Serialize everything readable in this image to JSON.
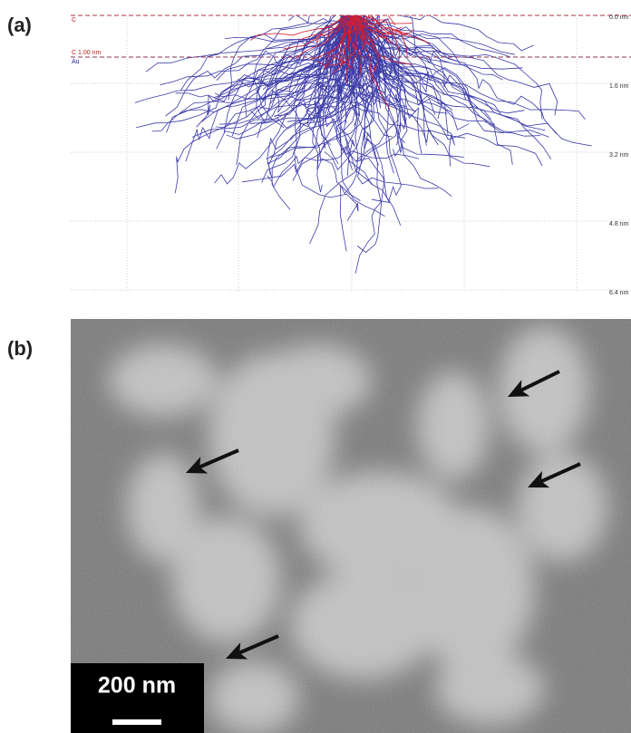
{
  "panel_a": {
    "label": "(a)",
    "layers": [
      "C",
      "C 1.00 nm",
      "Au"
    ],
    "depth_labels": [
      "0.0 nm",
      "1.6 nm",
      "3.2 nm",
      "4.8 nm",
      "6.4 nm"
    ]
  },
  "panel_b": {
    "label": "(b)",
    "scale_bar": "200 nm"
  }
}
